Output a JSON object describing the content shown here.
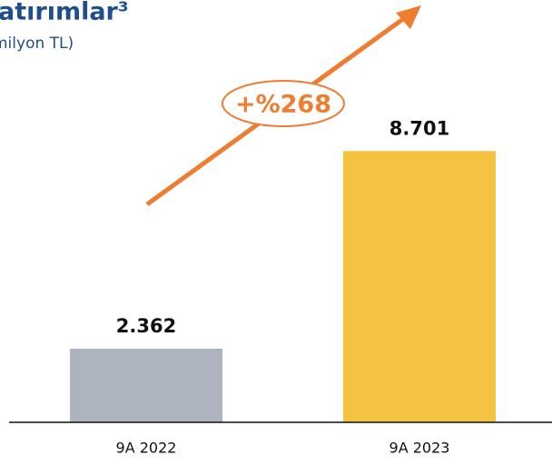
{
  "chart_data": {
    "type": "bar",
    "title": "atırımlar³",
    "subtitle": "milyon TL)",
    "categories": [
      "9A 2022",
      "9A 2023"
    ],
    "values": [
      2362,
      8701
    ],
    "value_labels": [
      "2.362",
      "8.701"
    ],
    "colors": [
      "#adb3bf",
      "#f5c242"
    ],
    "ylim": [
      0,
      12000
    ],
    "annotation": "+%268",
    "annotation_color": "#ee7d31"
  }
}
